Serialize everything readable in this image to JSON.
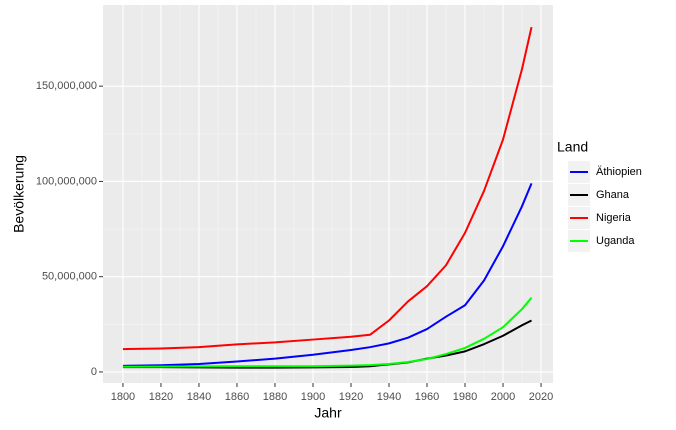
{
  "chart_data": {
    "type": "line",
    "x_label": "Jahr",
    "y_label": "Bevölkerung",
    "legend_title": "Land",
    "x": [
      1800,
      1820,
      1840,
      1860,
      1880,
      1900,
      1920,
      1930,
      1940,
      1950,
      1960,
      1970,
      1980,
      1990,
      2000,
      2010,
      2015
    ],
    "series": [
      {
        "name": "Äthiopien",
        "color": "#0000ff",
        "values": [
          3200000,
          3500000,
          4200000,
          5500000,
          7000000,
          9000000,
          11500000,
          13000000,
          15000000,
          18000000,
          22500000,
          29000000,
          35000000,
          48000000,
          66000000,
          87000000,
          99000000
        ]
      },
      {
        "name": "Ghana",
        "color": "#000000",
        "values": [
          2500000,
          2500000,
          2400000,
          2300000,
          2300000,
          2400000,
          2600000,
          3000000,
          4000000,
          5000000,
          7000000,
          8600000,
          10800000,
          14600000,
          19000000,
          24500000,
          27000000
        ]
      },
      {
        "name": "Nigeria",
        "color": "#ff0000",
        "values": [
          12000000,
          12300000,
          13000000,
          14500000,
          15500000,
          17000000,
          18500000,
          19500000,
          27000000,
          37000000,
          45000000,
          56000000,
          73000000,
          95000000,
          122000000,
          159000000,
          181000000
        ]
      },
      {
        "name": "Uganda",
        "color": "#00ff00",
        "values": [
          2700000,
          2800000,
          2900000,
          3000000,
          3000000,
          3000000,
          3300000,
          3600000,
          4200000,
          5200000,
          6800000,
          9400000,
          12600000,
          17400000,
          23500000,
          33000000,
          39000000
        ]
      }
    ],
    "xlim": [
      1789.5,
      2026.3
    ],
    "ylim": [
      -5800000,
      192600000
    ],
    "xticks": [
      1800,
      1820,
      1840,
      1860,
      1880,
      1900,
      1920,
      1940,
      1960,
      1980,
      2000,
      2020
    ],
    "yticks": [
      0,
      {
        "value": 50000000,
        "label": "50,000,000"
      },
      {
        "value": 100000000,
        "label": "100,000,000"
      },
      {
        "value": 150000000,
        "label": "150,000,000"
      }
    ],
    "grid": true
  }
}
